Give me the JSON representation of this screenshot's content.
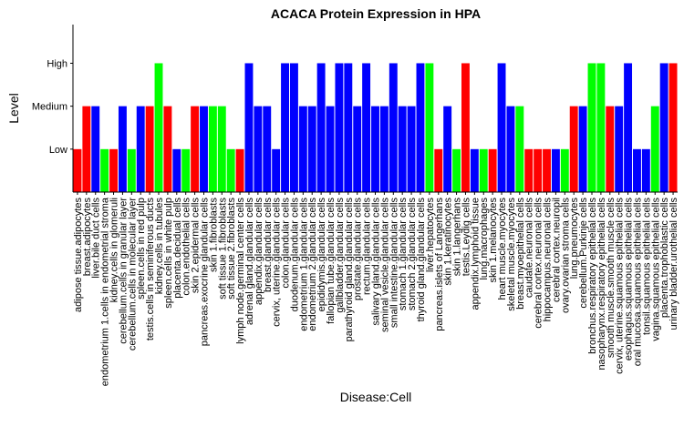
{
  "chart_data": {
    "type": "bar",
    "title": "ACACA Protein Expression in HPA",
    "xlabel": "Disease:Cell",
    "ylabel": "Level",
    "levels": [
      "Low",
      "Medium",
      "High"
    ],
    "colors": {
      "red": "#ff0000",
      "blue": "#0000ff",
      "green": "#00ff00"
    },
    "categories": [
      "adipose tissue.adipocytes",
      "breast.adipocytes",
      "liver.bile duct cells",
      "endometrium 1.cells in endometrial stroma",
      "kidney.cells in glomeruli",
      "cerebellum.cells in granular layer",
      "cerebellum.cells in molecular layer",
      "spleen.cells in red pulp",
      "testis.cells in seminiferous ducts",
      "kidney.cells in tubules",
      "spleen.cells in white pulp",
      "placenta.decidual cells",
      "colon.endothelial cells",
      "skin 2.epidermal cells",
      "pancreas.exocrine glandular cells",
      "skin 1.fibroblasts",
      "soft tissue 1.fibroblasts",
      "soft tissue 2.fibroblasts",
      "lymph node.germinal center cells",
      "adrenal gland.glandular cells",
      "appendix.glandular cells",
      "breast.glandular cells",
      "cervix, uterine.glandular cells",
      "colon.glandular cells",
      "duodenum.glandular cells",
      "endometrium 1.glandular cells",
      "endometrium 2.glandular cells",
      "epididymis.glandular cells",
      "fallopian tube.glandular cells",
      "gallbladder.glandular cells",
      "parathyroid gland.glandular cells",
      "prostate.glandular cells",
      "rectum.glandular cells",
      "salivary gland.glandular cells",
      "seminal vesicle.glandular cells",
      "small intestine.glandular cells",
      "stomach 1.glandular cells",
      "stomach 2.glandular cells",
      "thyroid gland.glandular cells",
      "liver.hepatocytes",
      "pancreas.islets of Langerhans",
      "skin 1.keratinocytes",
      "skin 1.langerhans",
      "testis.Leydig cells",
      "appendix.lymphoid tissue",
      "lung.macrophages",
      "skin 1.melanocytes",
      "heart muscle.myocytes",
      "skeletal muscle.myocytes",
      "breast.myoepithelial cells",
      "caudate.neuronal cells",
      "cerebral cortex.neuronal cells",
      "hippocampus.neuronal cells",
      "cerebral cortex.neuropil",
      "ovary.ovarian stroma cells",
      "lung.pneumocytes",
      "cerebellum.Purkinje cells",
      "bronchus.respiratory epithelial cells",
      "nasopharynx.respiratory epithelial cells",
      "smooth muscle.smooth muscle cells",
      "cervix, uterine.squamous epithelial cells",
      "esophagus.squamous epithelial cells",
      "oral mucosa.squamous epithelial cells",
      "tonsil.squamous epithelial cells",
      "vagina.squamous epithelial cells",
      "placenta.trophoblastic cells",
      "urinary bladder.urothelial cells"
    ],
    "values": [
      1,
      2,
      2,
      1,
      1,
      2,
      1,
      2,
      2,
      3,
      2,
      1,
      1,
      2,
      2,
      2,
      2,
      1,
      1,
      3,
      2,
      2,
      1,
      3,
      3,
      2,
      2,
      3,
      2,
      3,
      3,
      2,
      3,
      2,
      2,
      3,
      2,
      2,
      3,
      3,
      1,
      2,
      1,
      3,
      1,
      1,
      1,
      3,
      2,
      2,
      1,
      1,
      1,
      1,
      1,
      2,
      2,
      3,
      3,
      2,
      2,
      3,
      1,
      1,
      2,
      3,
      3
    ],
    "bar_colors": [
      "red",
      "red",
      "blue",
      "green",
      "red",
      "blue",
      "green",
      "blue",
      "red",
      "green",
      "red",
      "blue",
      "green",
      "red",
      "blue",
      "green",
      "green",
      "green",
      "red",
      "blue",
      "blue",
      "blue",
      "blue",
      "blue",
      "blue",
      "blue",
      "blue",
      "blue",
      "blue",
      "blue",
      "blue",
      "blue",
      "blue",
      "blue",
      "blue",
      "blue",
      "blue",
      "blue",
      "blue",
      "green",
      "red",
      "blue",
      "green",
      "red",
      "blue",
      "green",
      "red",
      "blue",
      "blue",
      "green",
      "red",
      "red",
      "red",
      "blue",
      "green",
      "red",
      "blue",
      "green",
      "green",
      "red",
      "blue",
      "blue",
      "blue",
      "blue",
      "green",
      "blue",
      "red"
    ],
    "ylim": [
      0,
      3.9
    ],
    "grid": false,
    "legend": "none"
  }
}
